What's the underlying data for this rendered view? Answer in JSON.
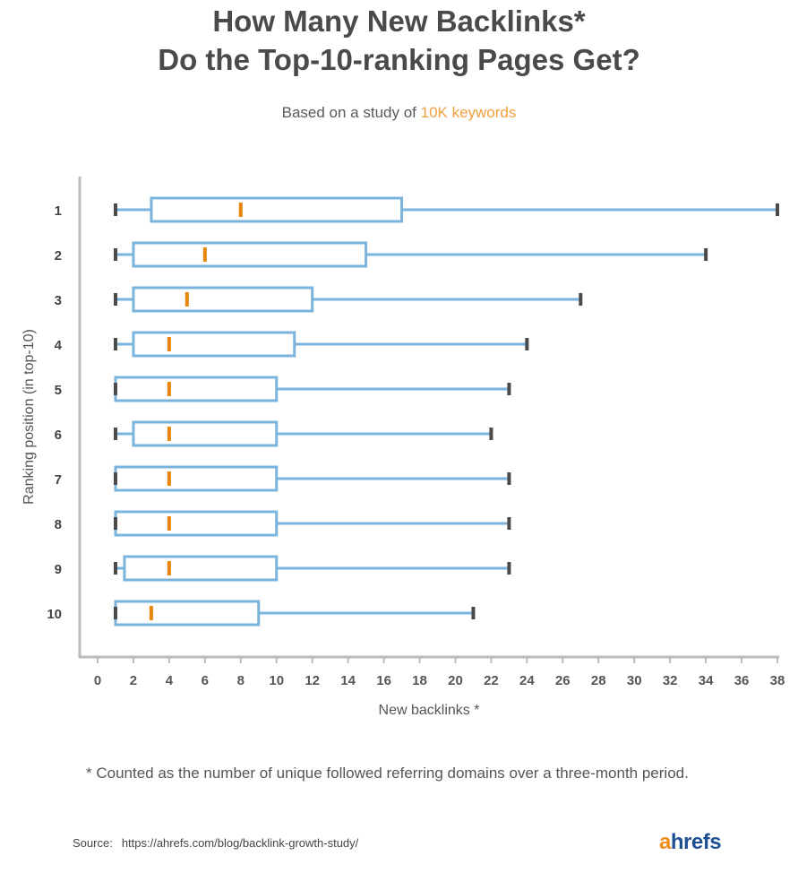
{
  "title_line1": "How Many New Backlinks*",
  "title_line2": "Do the Top-10-ranking Pages Get?",
  "subtitle_prefix": "Based on a study of ",
  "subtitle_highlight": "10K keywords",
  "footnote": "* Counted as the number of unique followed referring domains over a three-month period.",
  "source_label": "Source:",
  "source_url": "https://ahrefs.com/blog/backlink-growth-study/",
  "logo_a": "a",
  "logo_rest": "hrefs",
  "colors": {
    "box": "#7ab4dc",
    "median": "#e8850f",
    "whisker_cap": "#4a4a4a",
    "axis": "#bbbbbb",
    "brand_orange": "#f28b1d",
    "brand_blue": "#1f4f93"
  },
  "chart_data": {
    "type": "boxplot",
    "orientation": "horizontal",
    "xlabel": "New backlinks *",
    "ylabel": "Ranking position (in top-10)",
    "xlim": [
      0,
      38
    ],
    "xticks": [
      0,
      2,
      4,
      6,
      8,
      10,
      12,
      14,
      16,
      18,
      20,
      22,
      24,
      26,
      28,
      30,
      32,
      34,
      36,
      38
    ],
    "categories": [
      "1",
      "2",
      "3",
      "4",
      "5",
      "6",
      "7",
      "8",
      "9",
      "10"
    ],
    "boxes": [
      {
        "label": "1",
        "min": 1,
        "q1": 3,
        "median": 8,
        "q3": 17,
        "max": 38
      },
      {
        "label": "2",
        "min": 1,
        "q1": 2,
        "median": 6,
        "q3": 15,
        "max": 34
      },
      {
        "label": "3",
        "min": 1,
        "q1": 2,
        "median": 5,
        "q3": 12,
        "max": 27
      },
      {
        "label": "4",
        "min": 1,
        "q1": 2,
        "median": 4,
        "q3": 11,
        "max": 24
      },
      {
        "label": "5",
        "min": 1,
        "q1": 1,
        "median": 4,
        "q3": 10,
        "max": 23
      },
      {
        "label": "6",
        "min": 1,
        "q1": 2,
        "median": 4,
        "q3": 10,
        "max": 22
      },
      {
        "label": "7",
        "min": 1,
        "q1": 1,
        "median": 4,
        "q3": 10,
        "max": 23
      },
      {
        "label": "8",
        "min": 1,
        "q1": 1,
        "median": 4,
        "q3": 10,
        "max": 23
      },
      {
        "label": "9",
        "min": 1,
        "q1": 1.5,
        "median": 4,
        "q3": 10,
        "max": 23
      },
      {
        "label": "10",
        "min": 1,
        "q1": 1,
        "median": 3,
        "q3": 9,
        "max": 21
      }
    ]
  }
}
